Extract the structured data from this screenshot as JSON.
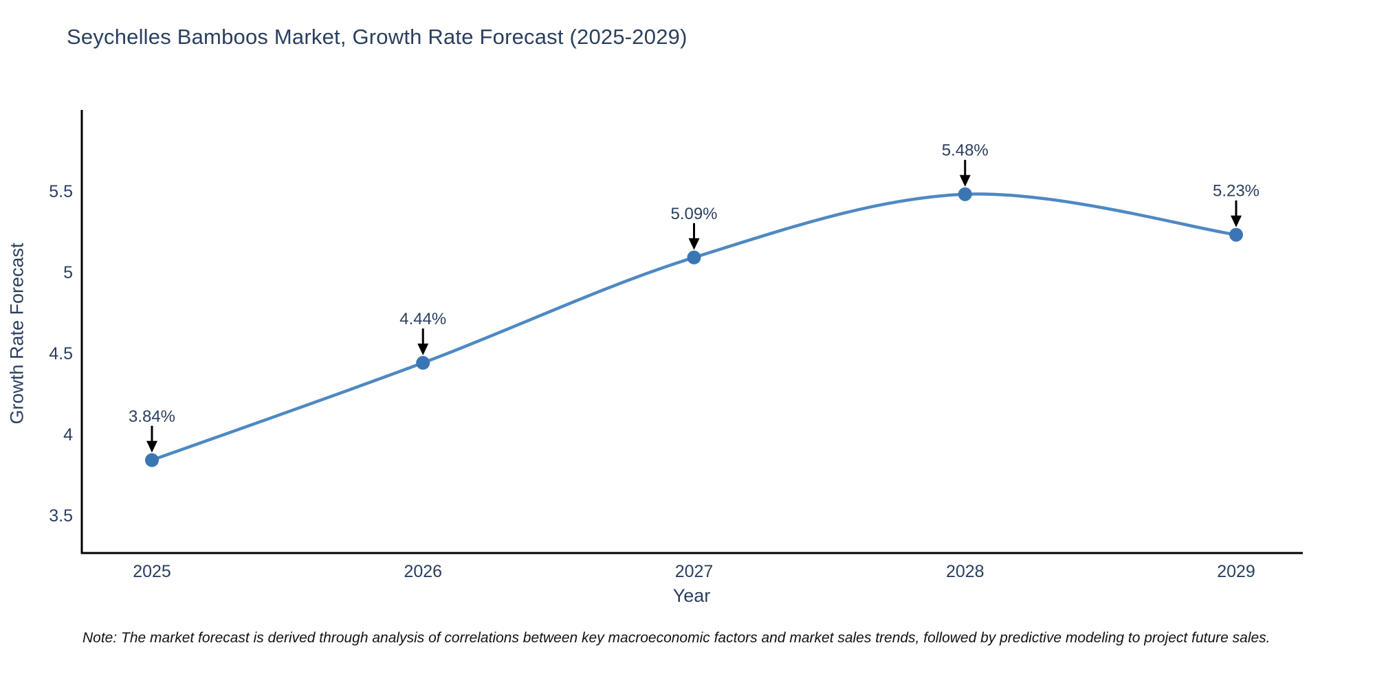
{
  "chart_data": {
    "type": "line",
    "title": "Seychelles Bamboos Market, Growth Rate Forecast (2025-2029)",
    "xlabel": "Year",
    "ylabel": "Growth Rate Forecast",
    "x": [
      2025,
      2026,
      2027,
      2028,
      2029
    ],
    "series": [
      {
        "name": "Growth Rate Forecast",
        "values": [
          3.84,
          4.44,
          5.09,
          5.48,
          5.23
        ]
      }
    ],
    "point_labels": [
      "3.84%",
      "4.44%",
      "5.09%",
      "5.48%",
      "5.23%"
    ],
    "yticks": [
      3.5,
      4,
      4.5,
      5,
      5.5
    ],
    "ylim": [
      3.267,
      6.0
    ],
    "line_shape": "spline",
    "grid": false,
    "legend_position": "none",
    "colors": {
      "line": "#4e89c2",
      "marker": "#3a76b4",
      "axis_line": "#000000",
      "text": "#2a3f5f",
      "annotation_arrow": "#000000",
      "note_text": "#111111",
      "background": "#ffffff"
    }
  },
  "note": "Note: The market forecast is derived through analysis of correlations between key macroeconomic factors and market sales trends, followed by predictive modeling to project future sales."
}
